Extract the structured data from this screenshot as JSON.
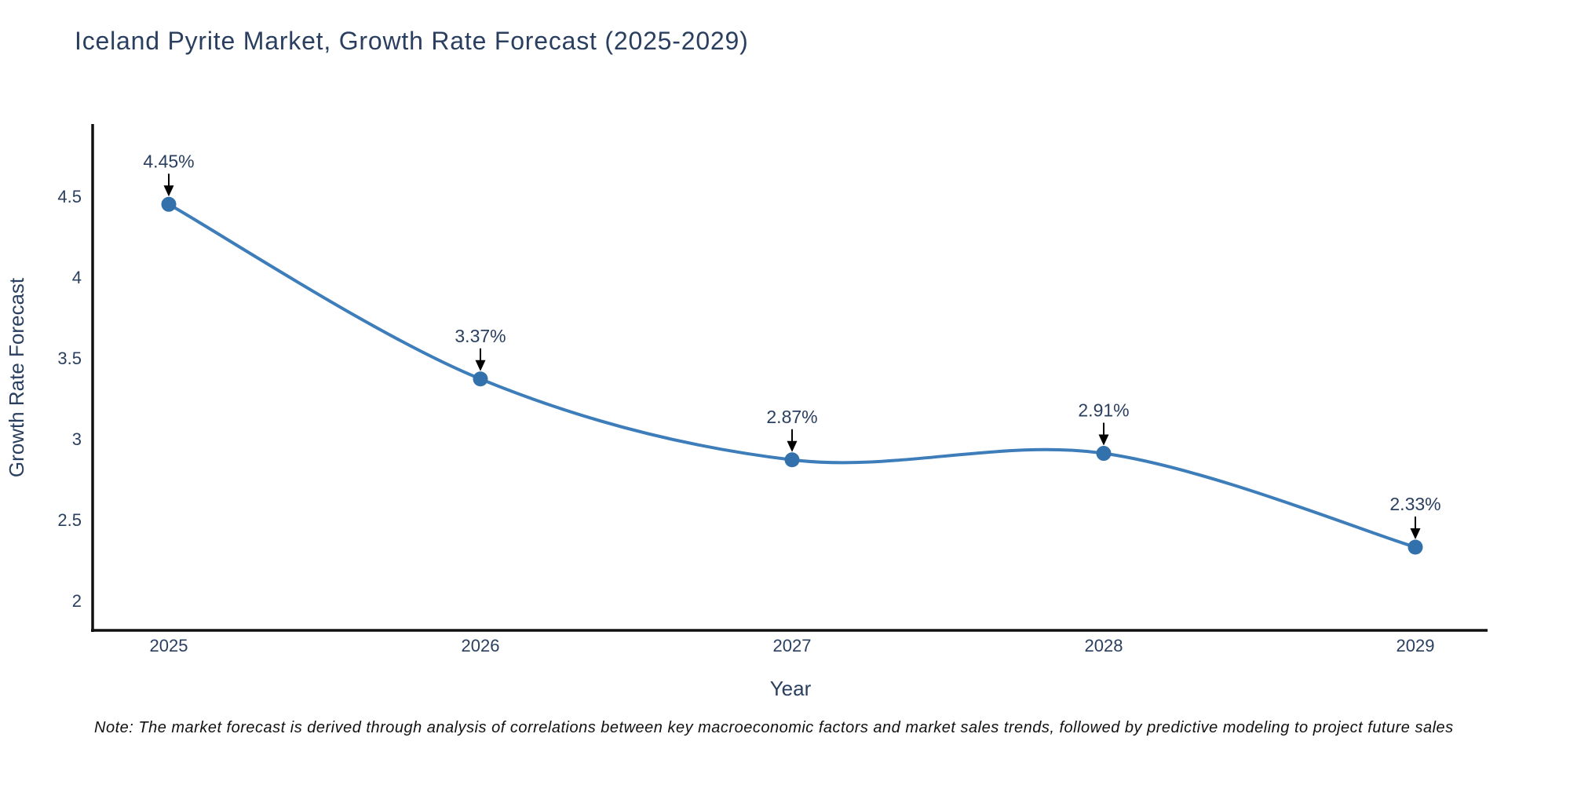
{
  "page": {
    "title": "Iceland Pyrite Market, Growth Rate Forecast (2025-2029)",
    "note": "Note: The market forecast is derived through analysis of correlations between key macroeconomic factors and market sales trends, followed by predictive modeling to project future sales"
  },
  "chart_data": {
    "type": "line",
    "title": "Iceland Pyrite Market, Growth Rate Forecast (2025-2029)",
    "x": [
      2025,
      2026,
      2027,
      2028,
      2029
    ],
    "series": [
      {
        "name": "Growth Rate Forecast",
        "values": [
          4.45,
          3.37,
          2.87,
          2.91,
          2.33
        ],
        "point_labels": [
          "4.45%",
          "3.37%",
          "2.87%",
          "2.91%",
          "2.33%"
        ]
      }
    ],
    "xlabel": "Year",
    "ylabel": "Growth Rate Forecast",
    "x_tick_labels": [
      "2025",
      "2026",
      "2027",
      "2028",
      "2029"
    ],
    "y_ticks": [
      2,
      2.5,
      3,
      3.5,
      4,
      4.5
    ],
    "y_tick_labels": [
      "2",
      "2.5",
      "3",
      "3.5",
      "4",
      "4.5"
    ],
    "ylim": [
      1.82,
      4.95
    ],
    "grid": false,
    "legend": "none",
    "line_shape": "spline",
    "annotation_style": "label-above-with-down-arrow",
    "colors": {
      "line": "#3d7dba",
      "marker": "#3371ad",
      "axis": "#111111",
      "text": "#2a3f5f",
      "annotation_text": "#2a3f5f",
      "annotation_arrow": "#000000",
      "note_text": "#111111",
      "background": "#ffffff"
    }
  }
}
